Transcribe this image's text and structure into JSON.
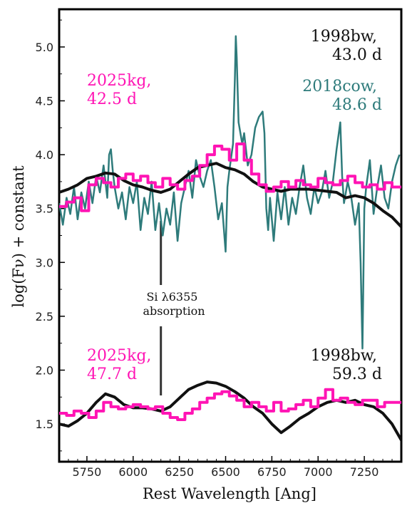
{
  "chart_data": {
    "type": "line",
    "xlabel": "Rest Wavelength [Ang]",
    "ylabel": "log(Fν) + constant",
    "xlim": [
      5600,
      7450
    ],
    "ylim": [
      1.15,
      5.35
    ],
    "xticks": [
      5750,
      6000,
      6250,
      6500,
      6750,
      7000,
      7250
    ],
    "yticks": [
      1.5,
      2.0,
      2.5,
      3.0,
      3.5,
      4.0,
      4.5,
      5.0
    ],
    "series": [
      {
        "name": "2018cow, 48.6 d",
        "color": "#2e7b7b",
        "style": "line",
        "x": [
          5600,
          5620,
          5640,
          5660,
          5680,
          5700,
          5720,
          5740,
          5760,
          5780,
          5800,
          5820,
          5840,
          5860,
          5870,
          5880,
          5890,
          5900,
          5920,
          5940,
          5960,
          5980,
          6000,
          6020,
          6040,
          6060,
          6080,
          6100,
          6120,
          6140,
          6160,
          6180,
          6200,
          6220,
          6240,
          6260,
          6280,
          6300,
          6320,
          6340,
          6360,
          6380,
          6400,
          6420,
          6440,
          6460,
          6480,
          6500,
          6510,
          6520,
          6540,
          6550,
          6555,
          6560,
          6570,
          6580,
          6590,
          6600,
          6620,
          6640,
          6660,
          6680,
          6700,
          6710,
          6720,
          6730,
          6740,
          6760,
          6780,
          6800,
          6820,
          6840,
          6860,
          6880,
          6900,
          6920,
          6940,
          6960,
          6980,
          7000,
          7020,
          7040,
          7060,
          7080,
          7100,
          7120,
          7130,
          7140,
          7160,
          7180,
          7200,
          7220,
          7230,
          7240,
          7250,
          7260,
          7280,
          7300,
          7320,
          7340,
          7360,
          7380,
          7400,
          7420,
          7440
        ],
        "y": [
          3.55,
          3.35,
          3.6,
          3.45,
          3.7,
          3.4,
          3.65,
          3.5,
          3.75,
          3.55,
          3.8,
          3.65,
          3.9,
          3.6,
          4.0,
          4.05,
          3.85,
          3.7,
          3.5,
          3.65,
          3.4,
          3.7,
          3.55,
          3.75,
          3.3,
          3.6,
          3.45,
          3.75,
          3.3,
          3.55,
          3.25,
          3.5,
          3.35,
          3.65,
          3.2,
          3.55,
          3.7,
          3.85,
          3.6,
          3.95,
          3.8,
          3.7,
          3.85,
          3.95,
          3.7,
          3.4,
          3.55,
          3.1,
          3.7,
          3.85,
          4.1,
          4.7,
          5.1,
          4.9,
          4.3,
          4.2,
          4.1,
          4.2,
          3.9,
          4.0,
          4.25,
          4.35,
          4.4,
          4.2,
          3.5,
          3.3,
          3.6,
          3.2,
          3.65,
          3.4,
          3.7,
          3.35,
          3.6,
          3.45,
          3.7,
          3.9,
          3.6,
          3.45,
          3.7,
          3.55,
          3.65,
          3.85,
          3.6,
          3.75,
          4.05,
          4.3,
          3.8,
          3.55,
          3.75,
          3.6,
          3.35,
          3.55,
          3.0,
          2.2,
          3.5,
          3.7,
          3.95,
          3.45,
          3.7,
          3.9,
          3.6,
          3.5,
          3.75,
          3.9,
          4.0
        ]
      },
      {
        "name": "1998bw, 43.0 d",
        "color": "#111111",
        "style": "line",
        "x": [
          5600,
          5650,
          5700,
          5750,
          5800,
          5850,
          5900,
          5950,
          6000,
          6050,
          6100,
          6150,
          6200,
          6250,
          6300,
          6350,
          6400,
          6450,
          6500,
          6550,
          6600,
          6650,
          6700,
          6750,
          6800,
          6850,
          6900,
          6950,
          7000,
          7050,
          7100,
          7150,
          7200,
          7250,
          7300,
          7350,
          7400,
          7450
        ],
        "y": [
          3.65,
          3.68,
          3.72,
          3.78,
          3.8,
          3.83,
          3.82,
          3.76,
          3.72,
          3.7,
          3.67,
          3.65,
          3.68,
          3.75,
          3.82,
          3.88,
          3.9,
          3.92,
          3.88,
          3.86,
          3.82,
          3.75,
          3.7,
          3.68,
          3.66,
          3.68,
          3.68,
          3.68,
          3.67,
          3.66,
          3.65,
          3.6,
          3.62,
          3.6,
          3.55,
          3.48,
          3.42,
          3.33
        ]
      },
      {
        "name": "2025kg, 42.5 d",
        "color": "#ff14b4",
        "style": "step",
        "x": [
          5600,
          5640,
          5680,
          5720,
          5760,
          5800,
          5840,
          5880,
          5920,
          5960,
          6000,
          6040,
          6080,
          6120,
          6160,
          6200,
          6240,
          6280,
          6320,
          6360,
          6400,
          6440,
          6480,
          6520,
          6560,
          6600,
          6640,
          6680,
          6720,
          6760,
          6800,
          6840,
          6880,
          6920,
          6960,
          7000,
          7040,
          7080,
          7120,
          7160,
          7200,
          7240,
          7280,
          7320,
          7360,
          7400,
          7440
        ],
        "y": [
          3.52,
          3.56,
          3.6,
          3.48,
          3.72,
          3.78,
          3.74,
          3.7,
          3.78,
          3.82,
          3.76,
          3.8,
          3.74,
          3.7,
          3.78,
          3.72,
          3.68,
          3.76,
          3.8,
          3.9,
          4.0,
          4.08,
          4.05,
          3.95,
          4.1,
          3.95,
          3.82,
          3.72,
          3.66,
          3.7,
          3.75,
          3.7,
          3.76,
          3.72,
          3.7,
          3.78,
          3.74,
          3.72,
          3.76,
          3.8,
          3.74,
          3.7,
          3.72,
          3.68,
          3.74,
          3.7,
          3.7
        ]
      },
      {
        "name": "1998bw, 59.3 d",
        "color": "#111111",
        "style": "line",
        "x": [
          5600,
          5650,
          5700,
          5750,
          5800,
          5850,
          5900,
          5950,
          6000,
          6050,
          6100,
          6150,
          6200,
          6250,
          6300,
          6350,
          6400,
          6450,
          6500,
          6550,
          6600,
          6650,
          6700,
          6750,
          6800,
          6850,
          6900,
          6950,
          7000,
          7050,
          7100,
          7150,
          7200,
          7250,
          7300,
          7350,
          7400,
          7450
        ],
        "y": [
          1.5,
          1.48,
          1.53,
          1.6,
          1.7,
          1.78,
          1.75,
          1.68,
          1.65,
          1.65,
          1.64,
          1.62,
          1.66,
          1.74,
          1.82,
          1.86,
          1.89,
          1.88,
          1.85,
          1.8,
          1.74,
          1.66,
          1.6,
          1.5,
          1.42,
          1.48,
          1.55,
          1.6,
          1.66,
          1.7,
          1.72,
          1.7,
          1.72,
          1.68,
          1.66,
          1.6,
          1.5,
          1.35
        ]
      },
      {
        "name": "2025kg, 47.7 d",
        "color": "#ff14b4",
        "style": "step",
        "x": [
          5600,
          5640,
          5680,
          5720,
          5760,
          5800,
          5840,
          5880,
          5920,
          5960,
          6000,
          6040,
          6080,
          6120,
          6160,
          6200,
          6240,
          6280,
          6320,
          6360,
          6400,
          6440,
          6480,
          6520,
          6560,
          6600,
          6640,
          6680,
          6720,
          6760,
          6800,
          6840,
          6880,
          6920,
          6960,
          7000,
          7040,
          7080,
          7120,
          7160,
          7200,
          7240,
          7280,
          7320,
          7360,
          7400,
          7440
        ],
        "y": [
          1.6,
          1.58,
          1.62,
          1.6,
          1.56,
          1.62,
          1.7,
          1.66,
          1.64,
          1.66,
          1.68,
          1.66,
          1.64,
          1.66,
          1.6,
          1.56,
          1.54,
          1.6,
          1.64,
          1.7,
          1.74,
          1.78,
          1.8,
          1.76,
          1.72,
          1.66,
          1.7,
          1.66,
          1.62,
          1.7,
          1.62,
          1.64,
          1.68,
          1.72,
          1.66,
          1.74,
          1.82,
          1.72,
          1.74,
          1.7,
          1.68,
          1.72,
          1.72,
          1.66,
          1.7,
          1.7,
          1.7
        ]
      }
    ],
    "annotations": {
      "sn98_a": [
        "1998bw,",
        "43.0 d"
      ],
      "sn18": [
        "2018cow,",
        "48.6 d"
      ],
      "sn25_a": [
        "2025kg,",
        "42.5 d"
      ],
      "sn98_b": [
        "1998bw,",
        "59.3 d"
      ],
      "sn25_b": [
        "2025kg,",
        "47.7 d"
      ],
      "si_line": [
        "Si λ6355",
        "absorption"
      ],
      "si_wavelength": 6150
    },
    "colors": {
      "magenta": "#ff14b4",
      "teal": "#2e7b7b",
      "black": "#111111"
    }
  }
}
